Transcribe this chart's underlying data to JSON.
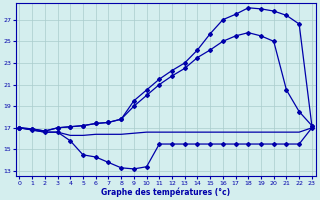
{
  "xlabel": "Graphe des températures (°c)",
  "bg_color": "#d4eeee",
  "grid_color": "#aacccc",
  "line_color": "#0000aa",
  "xlim": [
    -0.3,
    23.3
  ],
  "ylim": [
    12.5,
    28.5
  ],
  "yticks": [
    13,
    15,
    17,
    19,
    21,
    23,
    25,
    27
  ],
  "xticks": [
    0,
    1,
    2,
    3,
    4,
    5,
    6,
    7,
    8,
    9,
    10,
    11,
    12,
    13,
    14,
    15,
    16,
    17,
    18,
    19,
    20,
    21,
    22,
    23
  ],
  "flat_y": [
    17.0,
    16.8,
    16.6,
    16.6,
    16.3,
    16.3,
    16.4,
    16.4,
    16.4,
    16.5,
    16.6,
    16.6,
    16.6,
    16.6,
    16.6,
    16.6,
    16.6,
    16.6,
    16.6,
    16.6,
    16.6,
    16.6,
    16.6,
    17.0
  ],
  "u_y": [
    17.0,
    16.8,
    16.6,
    16.6,
    15.8,
    14.5,
    14.3,
    13.8,
    13.3,
    13.2,
    13.4,
    15.5,
    15.5,
    15.5,
    15.5,
    15.5,
    15.5,
    15.5,
    15.5,
    15.5,
    15.5,
    15.5,
    15.5,
    17.0
  ],
  "peak_y": [
    17.0,
    16.9,
    16.7,
    17.0,
    17.1,
    17.2,
    17.4,
    17.5,
    17.8,
    19.5,
    20.5,
    21.5,
    22.3,
    23.0,
    24.2,
    25.7,
    27.0,
    27.5,
    28.1,
    28.0,
    27.8,
    27.4,
    26.6,
    17.2
  ],
  "mid_y": [
    17.0,
    16.9,
    16.7,
    17.0,
    17.1,
    17.2,
    17.4,
    17.5,
    17.8,
    19.0,
    20.0,
    21.0,
    21.8,
    22.5,
    23.5,
    24.2,
    25.0,
    25.5,
    25.8,
    25.5,
    25.0,
    20.5,
    18.5,
    17.2
  ]
}
